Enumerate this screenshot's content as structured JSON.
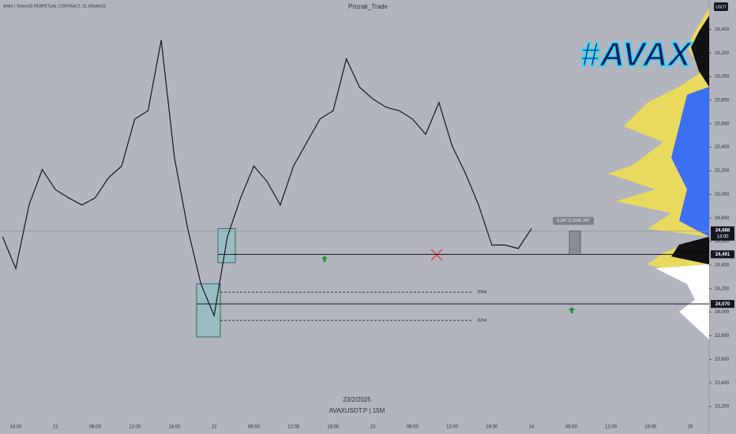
{
  "chart_data": {
    "type": "line",
    "header": "AVAX / TetherUS PERPETUAL CONTRACT, 15, BINANCE",
    "title": "Prizrak_Trade",
    "badge": "#AVAX",
    "date_label": "23/2/2025",
    "symbol_label": "AVAXUSDT.P | 15M",
    "currency": "USDT",
    "countdown": "14:00",
    "measure_label": "0,247 (1,01%) 247",
    "categories": [
      null,
      "18:00",
      null,
      null,
      "21",
      null,
      null,
      "06:00",
      null,
      null,
      "12:00",
      null,
      null,
      "18:00",
      null,
      null,
      "22",
      null,
      null,
      "06:00",
      null,
      null,
      "12:00",
      null,
      null,
      "18:00",
      null,
      null,
      "23",
      null,
      null,
      "06:00",
      null,
      null,
      "12:00",
      null,
      null,
      "18:00",
      null,
      null,
      "24",
      null,
      null,
      "06:00",
      null,
      null,
      "12:00",
      null,
      null,
      "18:00",
      null,
      null,
      "25"
    ],
    "series": [
      {
        "name": "AVAXUSDT.P",
        "color": "#131722",
        "values": [
          24640,
          24370,
          24910,
          25210,
          25040,
          24970,
          24910,
          24970,
          25140,
          25240,
          25640,
          25710,
          26310,
          25310,
          24710,
          24240,
          23970,
          24640,
          24970,
          25240,
          25110,
          24910,
          25240,
          25440,
          25640,
          25710,
          26150,
          25910,
          25810,
          25740,
          25710,
          25640,
          25510,
          25780,
          25410,
          25180,
          24910,
          24570,
          24570,
          24540,
          24710,
          null,
          null,
          null,
          null,
          null,
          null,
          null,
          null,
          null,
          null,
          null,
          null
        ]
      }
    ],
    "ylim": [
      23100,
      26650
    ],
    "yticks": [
      {
        "value": 23200,
        "label": "23,200"
      },
      {
        "value": 23400,
        "label": "23,400"
      },
      {
        "value": 23600,
        "label": "23,600"
      },
      {
        "value": 23800,
        "label": "23,800"
      },
      {
        "value": 24000,
        "label": "24,000"
      },
      {
        "value": 24200,
        "label": "24,200"
      },
      {
        "value": 24400,
        "label": "24,400"
      },
      {
        "value": 24600,
        "label": "24,600"
      },
      {
        "value": 24800,
        "label": "24,800"
      },
      {
        "value": 25000,
        "label": "25,000"
      },
      {
        "value": 25200,
        "label": "25,200"
      },
      {
        "value": 25400,
        "label": "25,400"
      },
      {
        "value": 25600,
        "label": "25,600"
      },
      {
        "value": 25800,
        "label": "25,800"
      },
      {
        "value": 26000,
        "label": "26,000"
      },
      {
        "value": 26200,
        "label": "26,200"
      },
      {
        "value": 26400,
        "label": "26,400"
      }
    ],
    "current_price": {
      "value": 24688,
      "label": "24,688"
    },
    "levels": [
      {
        "value": 24491,
        "label": "24,491"
      },
      {
        "value": 24070,
        "label": "24,070"
      }
    ],
    "dashed_levels": [
      {
        "value": 24170,
        "label": "30HA"
      },
      {
        "value": 23930,
        "label": "30HA"
      }
    ],
    "zones": [
      {
        "top": 24710,
        "bottom": 24420
      },
      {
        "top": 24240,
        "bottom": 23790
      }
    ]
  }
}
